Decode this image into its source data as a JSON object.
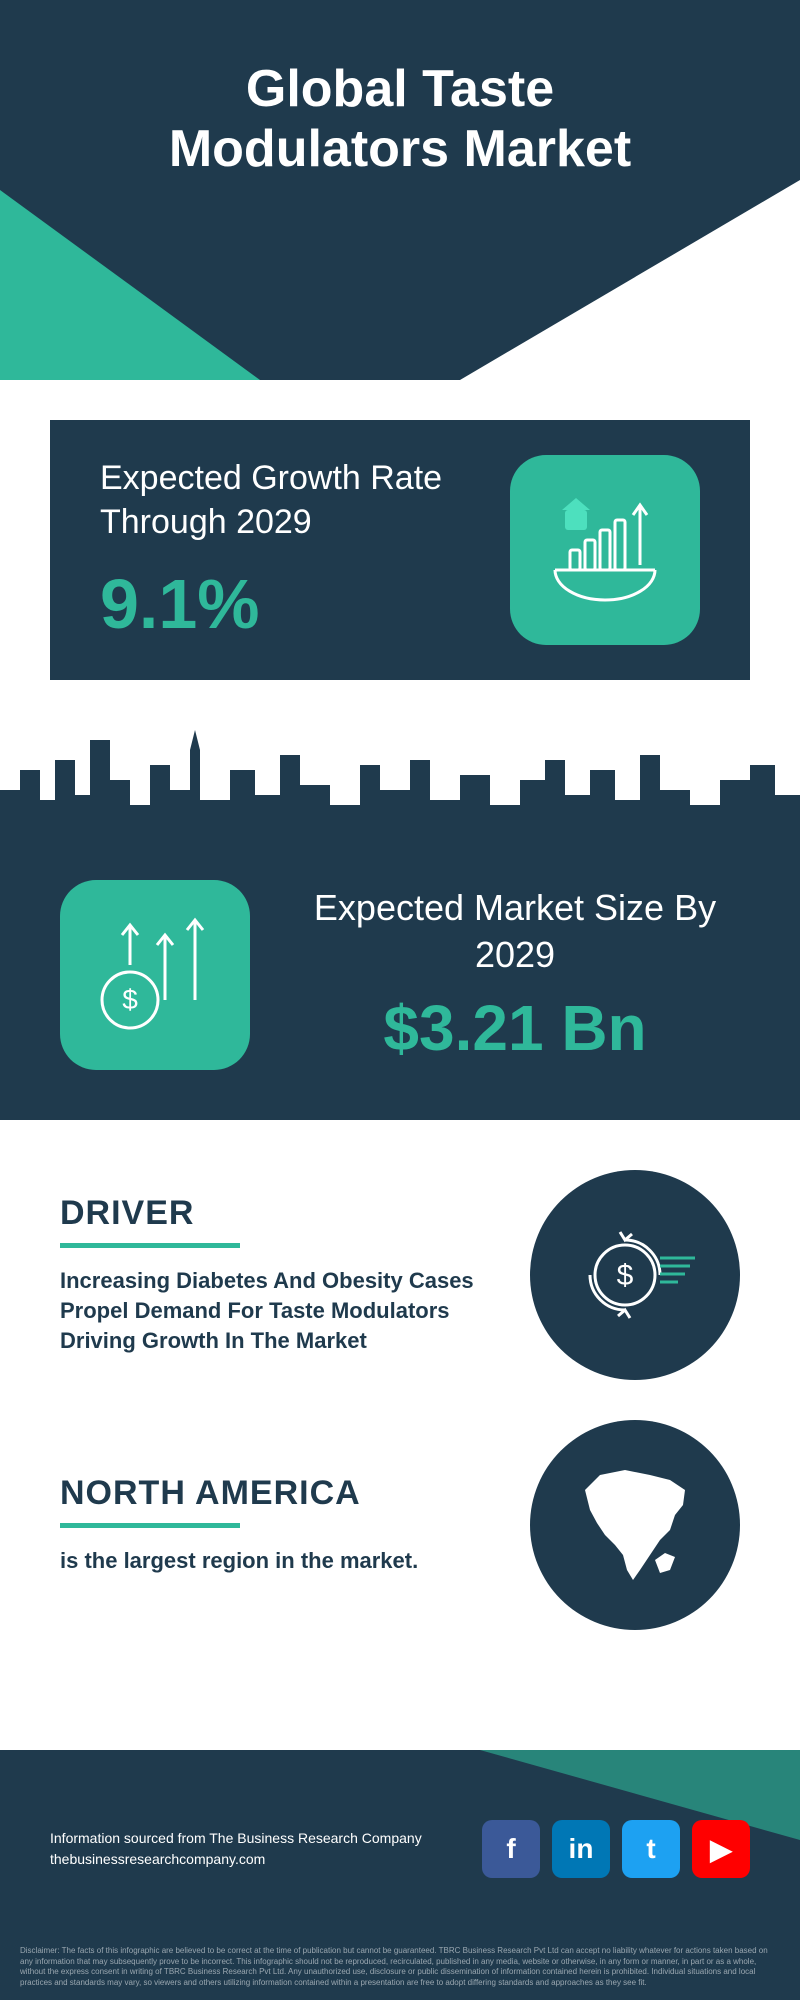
{
  "colors": {
    "dark": "#1f3a4d",
    "accent": "#2fb89a",
    "accent_light": "#4de0be",
    "white": "#ffffff",
    "fb": "#3b5998",
    "li": "#0077b5",
    "tw": "#1da1f2",
    "yt": "#ff0000"
  },
  "header": {
    "title": "Global Taste\nModulators Market"
  },
  "growth": {
    "label": "Expected Growth Rate Through 2029",
    "value": "9.1%",
    "icon_name": "growth-chart-globe-icon"
  },
  "market_size": {
    "label": "Expected Market Size By 2029",
    "value": "$3.21 Bn",
    "icon_name": "dollar-arrows-icon"
  },
  "driver": {
    "title": "DRIVER",
    "body": "Increasing Diabetes And Obesity Cases Propel Demand For Taste Modulators Driving Growth In The Market"
  },
  "region": {
    "title": "NORTH AMERICA",
    "body": "is the largest region in the market."
  },
  "footer": {
    "line1": "Information sourced from The Business Research Company",
    "line2": "thebusinessresearchcompany.com",
    "disclaimer": "Disclaimer: The facts of this infographic are believed to be correct at the time of publication but cannot be guaranteed. TBRC Business Research Pvt Ltd can accept no liability whatever for actions taken based on any information that may subsequently prove to be incorrect. This infographic should not be reproduced, recirculated, published in any media, website or otherwise, in any form or manner, in part or as a whole, without the express consent in writing of TBRC Business Research Pvt Ltd. Any unauthorized use, disclosure or public dissemination of information contained herein is prohibited. Individual situations and local practices and standards may vary, so viewers and others utilizing information contained within a presentation are free to adopt differing standards and approaches as they see fit."
  },
  "socials": [
    {
      "name": "facebook",
      "glyph": "f",
      "color": "#3b5998"
    },
    {
      "name": "linkedin",
      "glyph": "in",
      "color": "#0077b5"
    },
    {
      "name": "twitter",
      "glyph": "t",
      "color": "#1da1f2"
    },
    {
      "name": "youtube",
      "glyph": "▶",
      "color": "#ff0000"
    }
  ]
}
